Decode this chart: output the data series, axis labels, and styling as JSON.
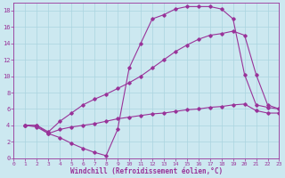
{
  "bg_color": "#cce8f0",
  "grid_color": "#aad4e0",
  "line_color": "#993399",
  "xlabel": "Windchill (Refroidissement éolien,°C)",
  "xlim": [
    0,
    23
  ],
  "ylim": [
    0,
    19
  ],
  "xtick_vals": [
    0,
    1,
    2,
    3,
    4,
    5,
    6,
    7,
    8,
    9,
    10,
    11,
    12,
    13,
    14,
    15,
    16,
    17,
    18,
    19,
    20,
    21,
    22,
    23
  ],
  "ytick_vals": [
    0,
    2,
    4,
    6,
    8,
    10,
    12,
    14,
    16,
    18
  ],
  "curve1_x": [
    1,
    2,
    3,
    4,
    5,
    6,
    7,
    8,
    9,
    10,
    11,
    12,
    13,
    14,
    15,
    16,
    17,
    18,
    19,
    20,
    21,
    22,
    23
  ],
  "curve1_y": [
    4,
    4,
    3,
    2.5,
    1.8,
    1.2,
    0.7,
    0.3,
    3.5,
    11,
    14,
    17,
    17.5,
    18.2,
    18.5,
    18.5,
    18.5,
    18.2,
    17.0,
    10.2,
    6.5,
    6.2,
    6.0
  ],
  "curve2_x": [
    1,
    2,
    3,
    4,
    5,
    6,
    7,
    8,
    9,
    10,
    11,
    12,
    13,
    14,
    15,
    16,
    17,
    18,
    19,
    20,
    21,
    22,
    23
  ],
  "curve2_y": [
    4,
    4,
    3.2,
    4.5,
    5.5,
    6.5,
    7.2,
    7.8,
    8.5,
    9.2,
    10.0,
    11.0,
    12.0,
    13.0,
    13.8,
    14.5,
    15.0,
    15.2,
    15.5,
    15.0,
    10.2,
    6.5,
    6.0
  ],
  "curve3_x": [
    1,
    2,
    3,
    4,
    5,
    6,
    7,
    8,
    9,
    10,
    11,
    12,
    13,
    14,
    15,
    16,
    17,
    18,
    19,
    20,
    21,
    22,
    23
  ],
  "curve3_y": [
    4,
    3.8,
    3.0,
    3.5,
    3.8,
    4.0,
    4.2,
    4.5,
    4.8,
    5.0,
    5.2,
    5.4,
    5.5,
    5.7,
    5.9,
    6.0,
    6.2,
    6.3,
    6.5,
    6.6,
    5.8,
    5.5,
    5.5
  ]
}
